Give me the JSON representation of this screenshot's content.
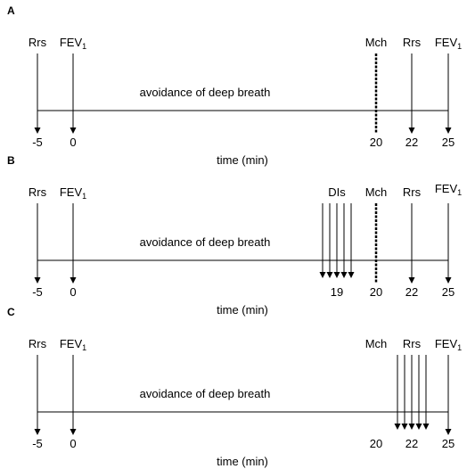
{
  "panels": [
    {
      "label": "A",
      "events": [
        {
          "label": "Rrs"
        },
        {
          "label": "FEV",
          "sub": "1"
        },
        {
          "label": "Mch"
        },
        {
          "label": "Rrs"
        },
        {
          "label": "FEV",
          "sub": "1"
        }
      ],
      "middle_text": "avoidance of deep breath",
      "ticks": [
        -5,
        0,
        20,
        22,
        25
      ],
      "axis_label": "time (min)"
    },
    {
      "label": "B",
      "events": [
        {
          "label": "Rrs"
        },
        {
          "label": "FEV",
          "sub": "1"
        },
        {
          "label": "DIs"
        },
        {
          "label": "Mch"
        },
        {
          "label": "Rrs"
        },
        {
          "label": "FEV",
          "sub": "1"
        }
      ],
      "middle_text": "avoidance of deep breath",
      "ticks": [
        -5,
        0,
        19,
        20,
        22,
        25
      ],
      "axis_label": "time (min)"
    },
    {
      "label": "C",
      "events": [
        {
          "label": "Rrs"
        },
        {
          "label": "FEV",
          "sub": "1"
        },
        {
          "label": "Mch"
        },
        {
          "label": "Rrs"
        },
        {
          "label": "FEV",
          "sub": "1"
        }
      ],
      "middle_text": "avoidance of deep breath",
      "ticks": [
        -5,
        0,
        20,
        22,
        25
      ],
      "axis_label": "time (min)"
    }
  ]
}
